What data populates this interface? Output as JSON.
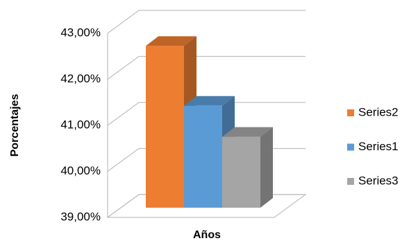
{
  "chart_data": {
    "type": "bar3d",
    "x_label": "Años",
    "y_label": "Porcentajes",
    "categories": [
      null
    ],
    "series": [
      {
        "name": "Series2",
        "color": "#ed7d31",
        "values": [
          42.65
        ]
      },
      {
        "name": "Series1",
        "color": "#5b9bd5",
        "values": [
          41.3
        ]
      },
      {
        "name": "Series3",
        "color": "#a5a5a5",
        "values": [
          40.6
        ]
      }
    ],
    "ylim": [
      39,
      43
    ],
    "yticks": [
      {
        "value": 39,
        "label": "39,00%"
      },
      {
        "value": 40,
        "label": "40,00%"
      },
      {
        "value": 41,
        "label": "41,00%"
      },
      {
        "value": 42,
        "label": "42,00%"
      },
      {
        "value": 43,
        "label": "43,00%"
      }
    ],
    "grid": true,
    "legend": "right"
  }
}
